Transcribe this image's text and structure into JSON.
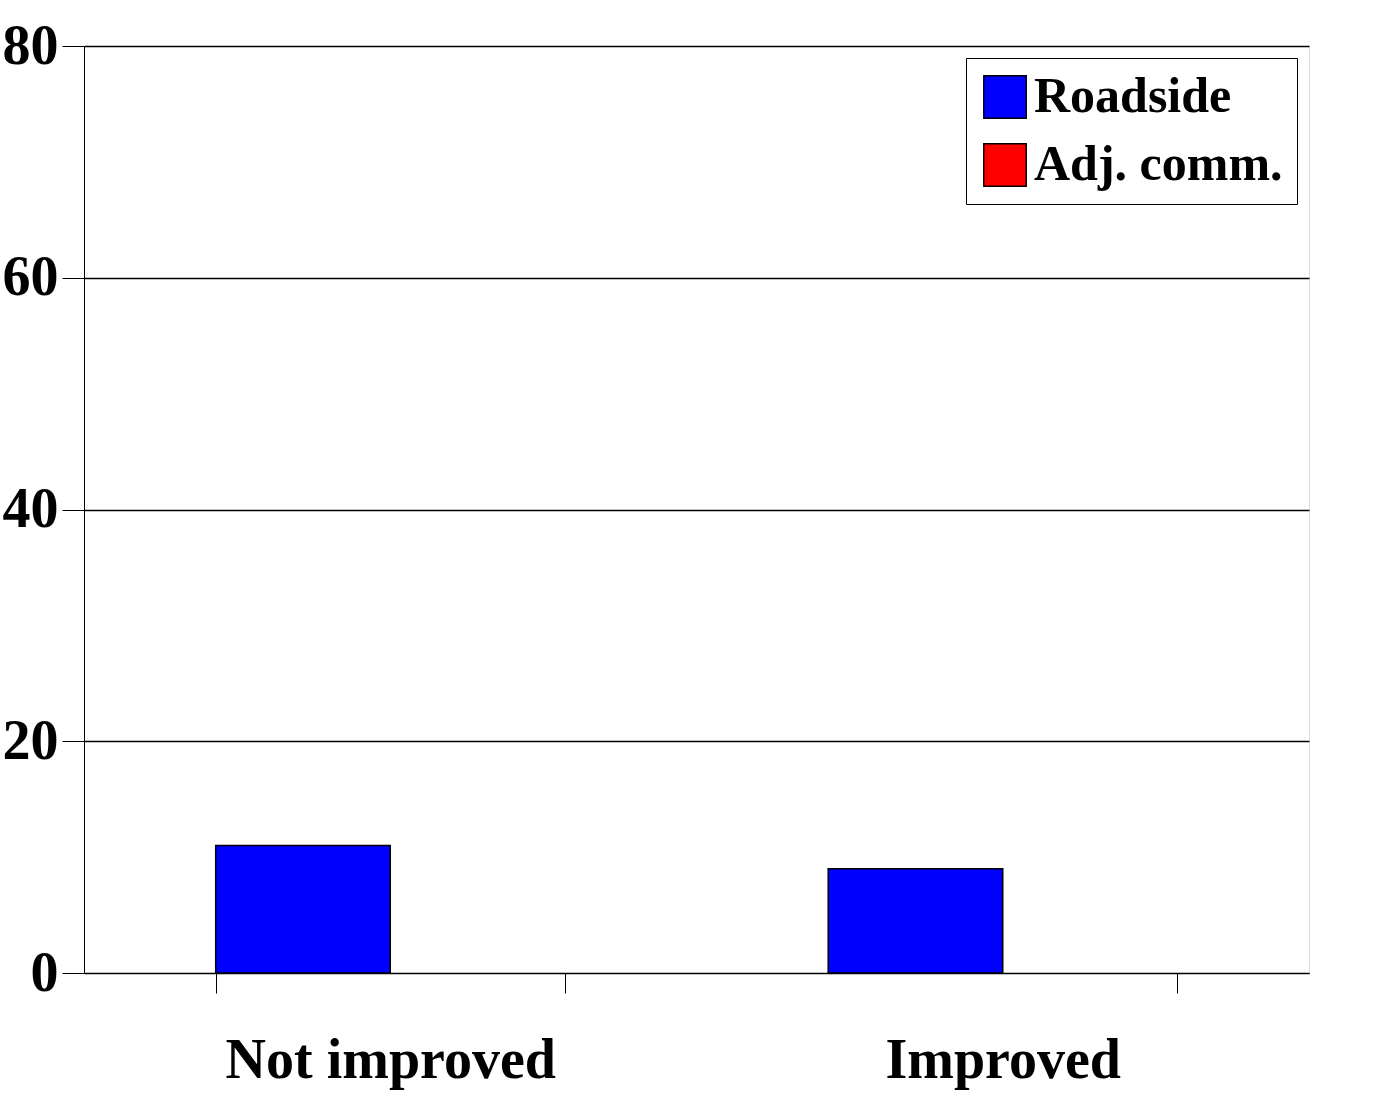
{
  "chart_data": {
    "type": "bar",
    "categories": [
      "Not improved",
      "Improved"
    ],
    "series": [
      {
        "name": "Roadside",
        "color": "#0000ff",
        "values": [
          11,
          9
        ]
      },
      {
        "name": "Adj. comm.",
        "color": "#ff0000",
        "values": [
          null,
          null
        ]
      }
    ],
    "ylim": [
      0,
      80
    ],
    "yticks": [
      0,
      20,
      40,
      60,
      80
    ],
    "grid": "y",
    "legend": "top right"
  }
}
